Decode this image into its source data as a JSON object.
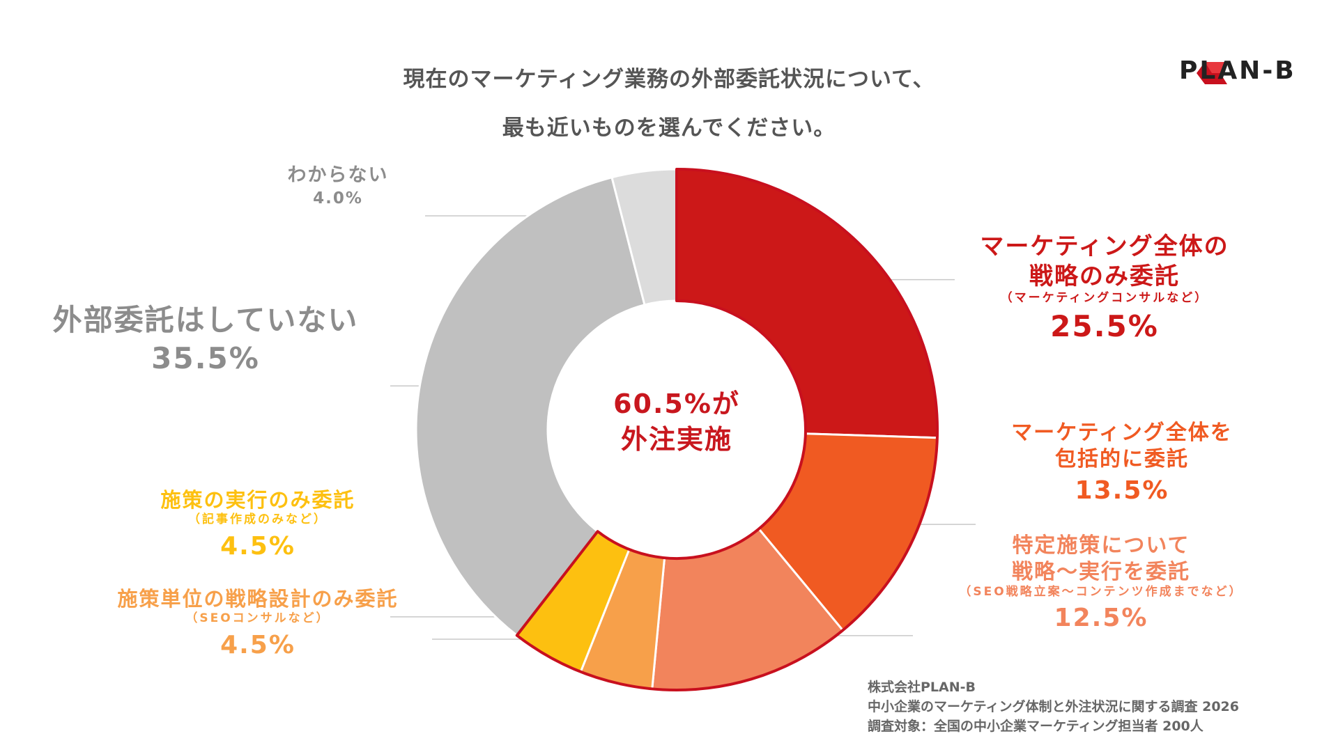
{
  "title": {
    "line1": "現在のマーケティング業務の外部委託状況について、",
    "line2": "最も近いものを選んでください。"
  },
  "logo": {
    "text": "PLAN-B"
  },
  "center_label": {
    "line1": "60.5%が",
    "line2": "外注実施"
  },
  "colors": {
    "strategy_only": "#cc1818",
    "comprehensive": "#f05a22",
    "specific": "#f2845c",
    "measure_strategy": "#f7a04a",
    "execution_only": "#fdc010",
    "none": "#c0c0c0",
    "unknown": "#dcdcdc",
    "outline_red": "#c8101e"
  },
  "chart_data": {
    "type": "pie",
    "categories": [
      "マーケティング全体の戦略のみ委託",
      "マーケティング全体を包括的に委託",
      "特定施策について戦略〜実行を委託",
      "施策単位の戦略設計のみ委託",
      "施策の実行のみ委託",
      "外部委託はしていない",
      "わからない"
    ],
    "values": [
      25.5,
      13.5,
      12.5,
      4.5,
      4.5,
      35.5,
      4.0
    ],
    "unit": "%",
    "title": "現在のマーケティング業務の外部委託状況について、最も近いものを選んでください。",
    "donut": true,
    "center_text": "60.5%が外注実施"
  },
  "labels": {
    "strategy_only": {
      "line1": "マーケティング全体の",
      "line2": "戦略のみ委託",
      "sub": "（マーケティングコンサルなど）",
      "value": "25.5%"
    },
    "comprehensive": {
      "line1": "マーケティング全体を",
      "line2": "包括的に委託",
      "value": "13.5%"
    },
    "specific": {
      "line1": "特定施策について",
      "line2": "戦略〜実行を委託",
      "sub": "（SEO戦略立案〜コンテンツ作成までなど）",
      "value": "12.5%"
    },
    "measure_strategy": {
      "line1": "施策単位の戦略設計のみ委託",
      "sub": "（SEOコンサルなど）",
      "value": "4.5%"
    },
    "execution_only": {
      "line1": "施策の実行のみ委託",
      "sub": "（記事作成のみなど）",
      "value": "4.5%"
    },
    "none": {
      "line1": "外部委託はしていない",
      "value": "35.5%"
    },
    "unknown": {
      "line1": "わからない",
      "value": "4.0%"
    }
  },
  "source": {
    "line1": "株式会社PLAN-B",
    "line2": "中小企業のマーケティング体制と外注状況に関する調査 2026",
    "line3": "調査対象：全国の中小企業マーケティング担当者 200人"
  }
}
